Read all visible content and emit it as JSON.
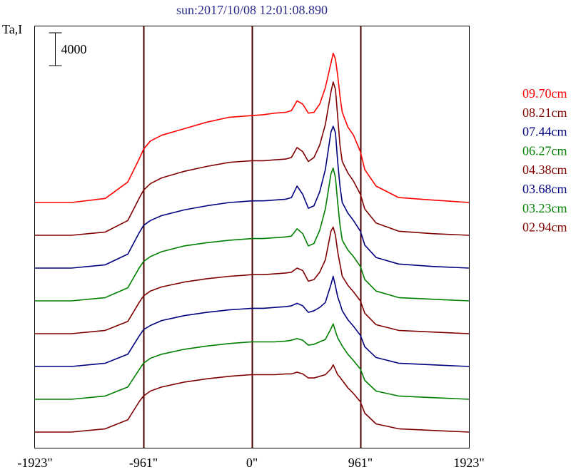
{
  "chart_data": {
    "type": "line",
    "title": "sun:2017/10/08 12:01:08.890",
    "ylabel": "Ta,I",
    "scale_bar_label": "4000",
    "scale_bar_value": 4000,
    "xlim": [
      -1923,
      1923
    ],
    "x_ticks": [
      {
        "value": -1923,
        "label": "-1923\""
      },
      {
        "value": -961,
        "label": "-961\""
      },
      {
        "value": 0,
        "label": "0\""
      },
      {
        "value": 961,
        "label": "961\""
      },
      {
        "value": 1923,
        "label": "1923\""
      }
    ],
    "vertical_lines": [
      -961,
      0,
      961
    ],
    "profile_x": [
      -1923,
      -1600,
      -1300,
      -1100,
      -1000,
      -961,
      -900,
      -800,
      -600,
      -400,
      -200,
      -100,
      0,
      100,
      200,
      300,
      350,
      400,
      450,
      500,
      550,
      600,
      650,
      700,
      720,
      740,
      760,
      780,
      800,
      850,
      900,
      961,
      1000,
      1100,
      1300,
      1600,
      1923
    ],
    "series": [
      {
        "name": "09.70cm",
        "color": "#ff0000",
        "offset": 14,
        "values": [
          0,
          0,
          500,
          2500,
          5300,
          6500,
          7500,
          8200,
          9000,
          9800,
          10400,
          10500,
          10600,
          10700,
          10900,
          11000,
          11200,
          12400,
          12000,
          10900,
          11000,
          12000,
          14000,
          17000,
          18200,
          17500,
          15500,
          13000,
          11000,
          9200,
          8200,
          6200,
          4000,
          2000,
          600,
          300,
          0
        ]
      },
      {
        "name": "08.21cm",
        "color": "#800000",
        "offset": 12,
        "values": [
          0,
          0,
          400,
          1800,
          4500,
          5500,
          6300,
          7000,
          7800,
          8400,
          8900,
          9000,
          9100,
          9100,
          9200,
          9300,
          9500,
          10700,
          10200,
          9000,
          9500,
          11000,
          13500,
          17500,
          18700,
          17800,
          14500,
          11000,
          9000,
          7600,
          6600,
          5000,
          3200,
          1500,
          500,
          200,
          0
        ]
      },
      {
        "name": "07.44cm",
        "color": "#000080",
        "offset": 10,
        "values": [
          0,
          0,
          400,
          1700,
          4300,
          5200,
          5800,
          6400,
          7100,
          7600,
          8000,
          8100,
          8200,
          8200,
          8300,
          8400,
          8600,
          10000,
          9000,
          7300,
          7600,
          9300,
          12000,
          16600,
          17300,
          16500,
          13000,
          10000,
          8000,
          6700,
          5800,
          4500,
          2800,
          1300,
          500,
          200,
          0
        ]
      },
      {
        "name": "06.27cm",
        "color": "#008000",
        "offset": 8,
        "values": [
          0,
          0,
          400,
          1600,
          4000,
          4800,
          5400,
          6000,
          6700,
          7100,
          7400,
          7500,
          7600,
          7600,
          7700,
          7800,
          7900,
          8800,
          8200,
          6700,
          7000,
          8600,
          11200,
          15500,
          16200,
          15000,
          12000,
          9300,
          7400,
          6200,
          5400,
          4200,
          2600,
          1200,
          400,
          200,
          0
        ]
      },
      {
        "name": "04.38cm",
        "color": "#800000",
        "offset": 6,
        "values": [
          0,
          0,
          400,
          1500,
          3800,
          4600,
          5200,
          5700,
          6300,
          6700,
          7000,
          7100,
          7200,
          7200,
          7300,
          7400,
          7500,
          8000,
          7700,
          6400,
          6600,
          7500,
          9000,
          12500,
          13000,
          12000,
          10000,
          8500,
          7000,
          5900,
          5100,
          4000,
          2500,
          1100,
          400,
          200,
          0
        ]
      },
      {
        "name": "03.68cm",
        "color": "#000080",
        "offset": 4,
        "values": [
          0,
          0,
          400,
          1500,
          3700,
          4500,
          5000,
          5600,
          6200,
          6600,
          6900,
          7000,
          7100,
          7100,
          7200,
          7300,
          7400,
          7700,
          7400,
          6600,
          6800,
          7200,
          7800,
          10000,
          11000,
          9800,
          8500,
          7700,
          6800,
          5700,
          4900,
          3800,
          2400,
          1100,
          400,
          200,
          0
        ]
      },
      {
        "name": "03.23cm",
        "color": "#008000",
        "offset": 2,
        "values": [
          0,
          0,
          400,
          1500,
          3600,
          4400,
          5000,
          5500,
          6100,
          6500,
          6800,
          6900,
          7000,
          7000,
          7000,
          7100,
          7200,
          7400,
          7200,
          6600,
          6700,
          7000,
          7300,
          8600,
          9200,
          8300,
          7500,
          7000,
          6500,
          5500,
          4700,
          3700,
          2300,
          1000,
          400,
          200,
          0
        ]
      },
      {
        "name": "02.94cm",
        "color": "#800000",
        "offset": 0,
        "values": [
          0,
          0,
          400,
          1500,
          3700,
          4400,
          5000,
          5500,
          6100,
          6500,
          6800,
          6900,
          7000,
          7000,
          7000,
          7100,
          7100,
          7300,
          7100,
          6600,
          6600,
          6800,
          7000,
          7700,
          8200,
          7600,
          7000,
          6700,
          6300,
          5400,
          4700,
          3700,
          2300,
          1000,
          400,
          200,
          0
        ]
      }
    ],
    "grid": false,
    "legend_position": "right"
  }
}
